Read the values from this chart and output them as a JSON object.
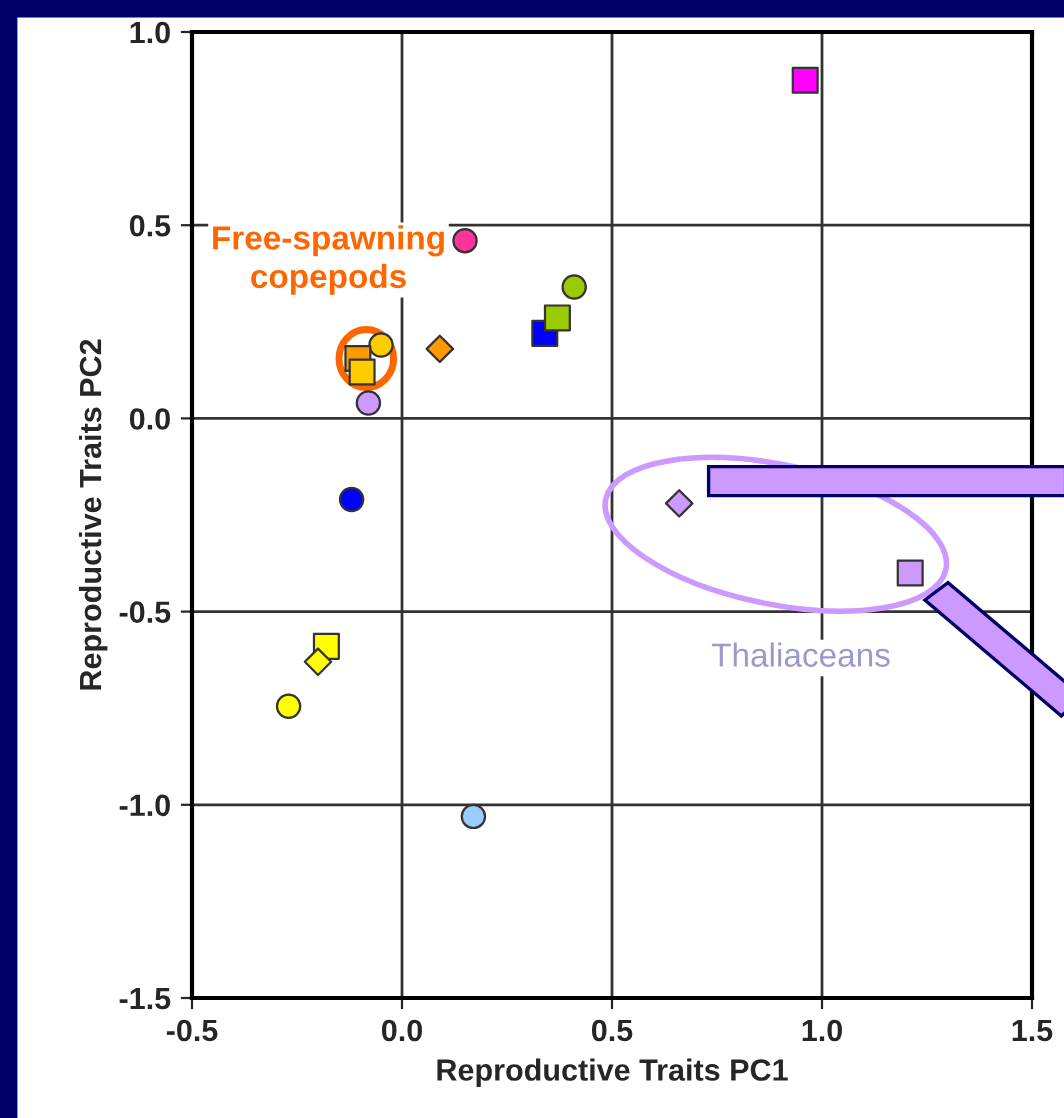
{
  "chart_data": {
    "type": "scatter",
    "xlabel": "Reproductive Traits PC1",
    "ylabel": "Reproductive Traits PC2",
    "xlim": [
      -0.5,
      1.5
    ],
    "xticks": [
      {
        "value": -0.5,
        "label": "-0.5"
      },
      {
        "value": 0.0,
        "label": "0.0"
      },
      {
        "value": 0.5,
        "label": "0.5"
      },
      {
        "value": 1.0,
        "label": "1.0"
      },
      {
        "value": 1.5,
        "label": "1.5"
      }
    ],
    "ylim": [
      -1.5,
      1.0
    ],
    "yticks": [
      {
        "value": -1.5,
        "label": "-1.5"
      },
      {
        "value": -1.0,
        "label": "-1.0"
      },
      {
        "value": -0.5,
        "label": "-0.5"
      },
      {
        "value": 0.0,
        "label": "0.0"
      },
      {
        "value": 0.5,
        "label": "0.5"
      },
      {
        "value": 1.0,
        "label": "1.0"
      }
    ],
    "grid": true,
    "legend": false,
    "annotations": [
      "Free-spawning\ncopepods",
      "Thaliaceans"
    ],
    "series": [
      {
        "color": "#ff00ff",
        "marker": "square",
        "x": [
          0.96
        ],
        "values": [
          0.875
        ]
      },
      {
        "color": "#ff3399",
        "marker": "circle",
        "x": [
          0.15
        ],
        "values": [
          0.46
        ]
      },
      {
        "color": "#99cc00",
        "marker": "circle",
        "x": [
          0.41
        ],
        "values": [
          0.34
        ]
      },
      {
        "color": "#0000ff",
        "marker": "square",
        "x": [
          0.34
        ],
        "values": [
          0.22
        ]
      },
      {
        "color": "#99cc00",
        "marker": "square",
        "x": [
          0.37
        ],
        "values": [
          0.26
        ]
      },
      {
        "color": "#ff9900",
        "marker": "diamond",
        "x": [
          0.09
        ],
        "values": [
          0.18
        ]
      },
      {
        "color": "#ffcc00",
        "marker": "circle",
        "x": [
          -0.05
        ],
        "values": [
          0.19
        ]
      },
      {
        "color": "#ff9900",
        "marker": "square",
        "x": [
          -0.105
        ],
        "values": [
          0.155
        ]
      },
      {
        "color": "#ffcc00",
        "marker": "square",
        "x": [
          -0.095
        ],
        "values": [
          0.12
        ]
      },
      {
        "color": "#cc99ff",
        "marker": "circle",
        "x": [
          -0.08
        ],
        "values": [
          0.04
        ]
      },
      {
        "color": "#0000ff",
        "marker": "circle",
        "x": [
          -0.12
        ],
        "values": [
          -0.21
        ]
      },
      {
        "color": "#ffff00",
        "marker": "square",
        "x": [
          -0.18
        ],
        "values": [
          -0.59
        ]
      },
      {
        "color": "#ffff00",
        "marker": "diamond",
        "x": [
          -0.2
        ],
        "values": [
          -0.63
        ]
      },
      {
        "color": "#ffff00",
        "marker": "circle",
        "x": [
          -0.27
        ],
        "values": [
          -0.745
        ]
      },
      {
        "color": "#99ccff",
        "marker": "circle",
        "x": [
          0.17
        ],
        "values": [
          -1.03
        ]
      },
      {
        "color": "#cc99ff",
        "marker": "diamond",
        "x": [
          0.66
        ],
        "values": [
          -0.22
        ]
      },
      {
        "color": "#cc99ff",
        "marker": "square",
        "x": [
          1.21
        ],
        "values": [
          -0.4
        ]
      }
    ]
  }
}
